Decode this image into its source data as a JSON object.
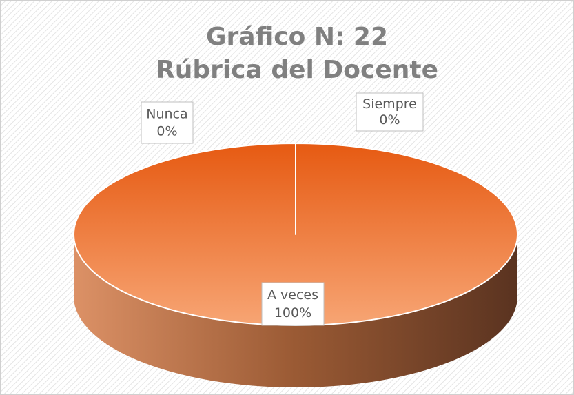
{
  "chart_data": {
    "type": "pie3d",
    "title": "Gráfico N: 22 Rúbrica del Docente",
    "categories": [
      "Siempre",
      "A veces",
      "Nunca"
    ],
    "values": [
      0,
      100,
      0
    ],
    "value_labels": [
      "0%",
      "100%",
      "0%"
    ],
    "color": "#ed7d31"
  }
}
